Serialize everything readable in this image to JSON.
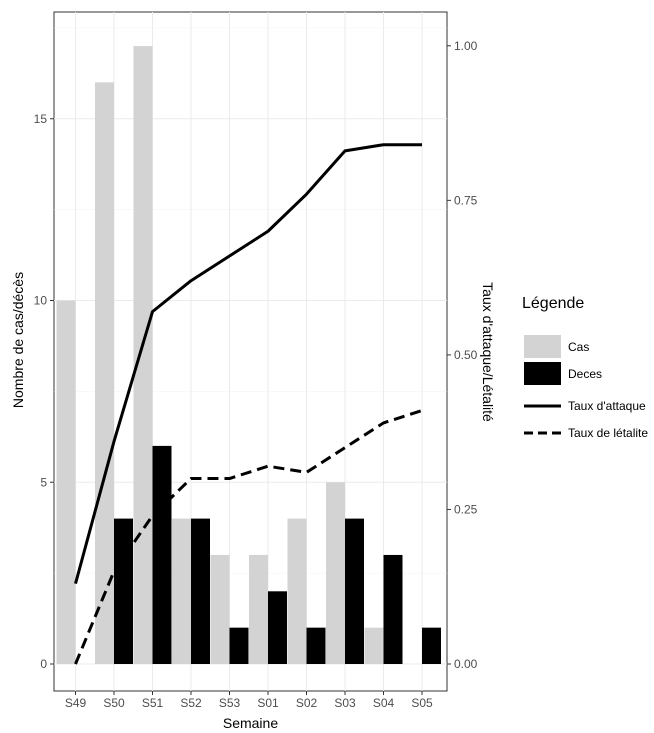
{
  "chart_data": {
    "type": "bar",
    "categories": [
      "S49",
      "S50",
      "S51",
      "S52",
      "S53",
      "S01",
      "S02",
      "S03",
      "S04",
      "S05"
    ],
    "series": [
      {
        "name": "Cas",
        "kind": "bar",
        "axis": "left",
        "color": "#d3d3d3",
        "values": [
          10,
          16,
          17,
          4,
          3,
          3,
          4,
          5,
          1,
          0
        ]
      },
      {
        "name": "Deces",
        "kind": "bar",
        "axis": "left",
        "color": "#000000",
        "values": [
          0,
          4,
          6,
          4,
          1,
          2,
          1,
          4,
          3,
          1
        ]
      },
      {
        "name": "Taux d'attaque",
        "kind": "line",
        "axis": "right",
        "style": "solid",
        "color": "#000000",
        "values": [
          0.13,
          0.36,
          0.57,
          0.62,
          0.66,
          0.7,
          0.76,
          0.83,
          0.84,
          0.84
        ]
      },
      {
        "name": "Taux de létalite",
        "kind": "line",
        "axis": "right",
        "style": "dashed",
        "color": "#000000",
        "values": [
          0.0,
          0.15,
          0.24,
          0.3,
          0.3,
          0.32,
          0.31,
          0.35,
          0.39,
          0.41
        ]
      }
    ],
    "xlabel": "Semaine",
    "ylabel": "Nombre de cas/décès",
    "ylabel_right": "Taux d'attaque/Létalité",
    "ylim": [
      0,
      17.5
    ],
    "ylim_right": [
      0,
      1.029
    ],
    "yticks": [
      0,
      5,
      10,
      15
    ],
    "yticks_right": [
      0.0,
      0.25,
      0.5,
      0.75,
      1.0
    ],
    "ytick_labels_right": [
      "0.00",
      "0.25",
      "0.50",
      "0.75",
      "1.00"
    ],
    "grid": true,
    "legend": {
      "title": "Légende",
      "placement": "right",
      "entries": [
        "Cas",
        "Deces",
        "Taux d'attaque",
        "Taux de létalite"
      ]
    }
  }
}
